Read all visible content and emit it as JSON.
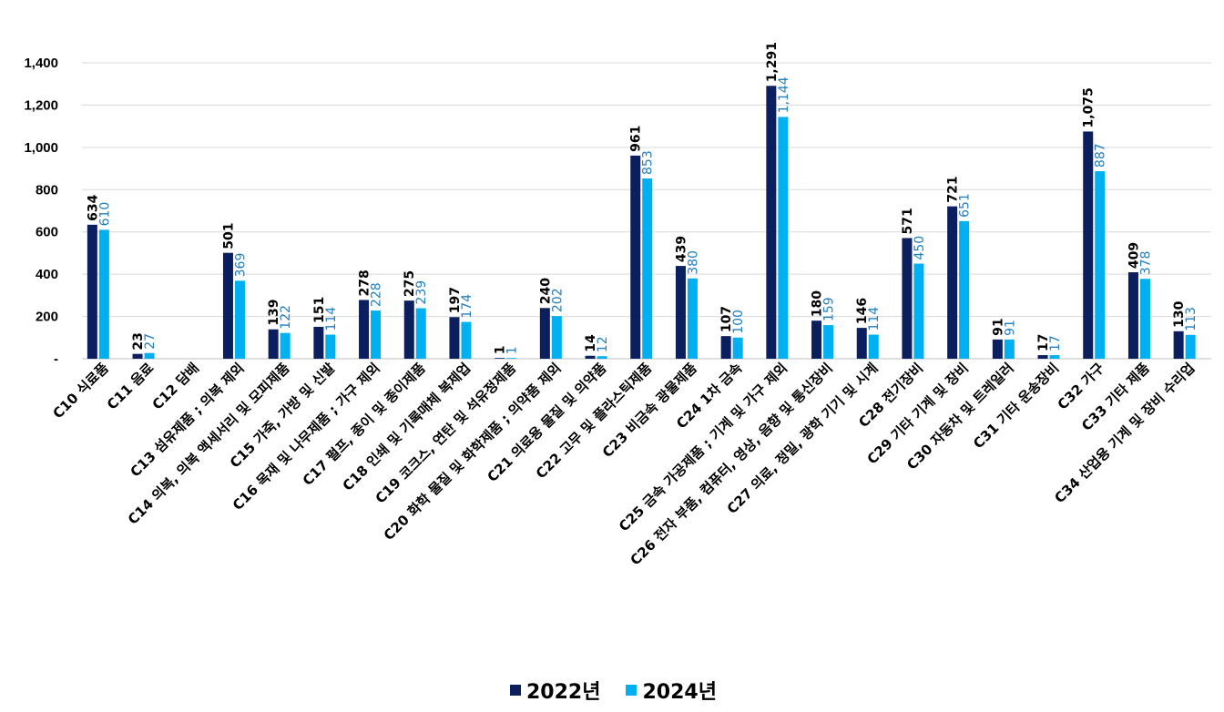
{
  "chart_data": {
    "type": "bar",
    "title": "",
    "xlabel": "",
    "ylabel": "",
    "ylim": [
      0,
      1400
    ],
    "yticks": [
      0,
      200,
      400,
      600,
      800,
      1000,
      1200,
      1400
    ],
    "ytick_labels": [
      "-",
      "200",
      "400",
      "600",
      "800",
      "1,000",
      "1,200",
      "1,400"
    ],
    "grid": true,
    "legend_position": "bottom",
    "categories": [
      "C10 식료품",
      "C11 음료",
      "C12 담배",
      "C13 섬유제품 ; 의복 제외",
      "C14 의복, 의복 액세서리 및 모피제품",
      "C15 가죽, 가방 및 신발",
      "C16 목재 및 나무제품 ; 가구 제외",
      "C17 펄프, 종이 및 종이제품",
      "C18 인쇄 및 기록매체 복제업",
      "C19 코크스, 연탄 및 석유정제품",
      "C20 화학 물질 및 화학제품 ; 의약품 제외",
      "C21 의료용 물질 및 의약품",
      "C22 고무 및 플라스틱제품",
      "C23 비금속 광물제품",
      "C24 1차 금속",
      "C25 금속 가공제품 ; 기계 및 가구 제외",
      "C26 전자 부품, 컴퓨터, 영상, 음향 및 통신장비",
      "C27 의료, 정밀, 광학 기기 및 시계",
      "C28 전기장비",
      "C29 기타 기계 및 장비",
      "C30 자동차 및 트레일러",
      "C31 기타 운송장비",
      "C32 가구",
      "C33 기타 제품",
      "C34 산업용 기계 및 장비 수리업"
    ],
    "series": [
      {
        "name": "2022년",
        "color": "#0b1f5e",
        "values": [
          634,
          23,
          null,
          501,
          139,
          151,
          278,
          275,
          197,
          1,
          240,
          14,
          961,
          439,
          107,
          1291,
          180,
          146,
          571,
          721,
          91,
          17,
          1075,
          409,
          130
        ],
        "labels": [
          "634",
          "23",
          "",
          "501",
          "139",
          "151",
          "278",
          "275",
          "197",
          "1",
          "240",
          "14",
          "961",
          "439",
          "107",
          "1,291",
          "180",
          "146",
          "571",
          "721",
          "91",
          "17",
          "1,075",
          "409",
          "130"
        ]
      },
      {
        "name": "2024년",
        "color": "#00b0f0",
        "label_color": "#1f7fc0",
        "values": [
          610,
          27,
          null,
          369,
          122,
          114,
          228,
          239,
          174,
          1,
          202,
          12,
          853,
          380,
          100,
          1144,
          159,
          114,
          450,
          651,
          91,
          17,
          887,
          378,
          113
        ],
        "labels": [
          "610",
          "27",
          "",
          "369",
          "122",
          "114",
          "228",
          "239",
          "174",
          "1",
          "202",
          "12",
          "853",
          "380",
          "100",
          "1,144",
          "159",
          "114",
          "450",
          "651",
          "91",
          "17",
          "887",
          "378",
          "113"
        ]
      }
    ]
  }
}
